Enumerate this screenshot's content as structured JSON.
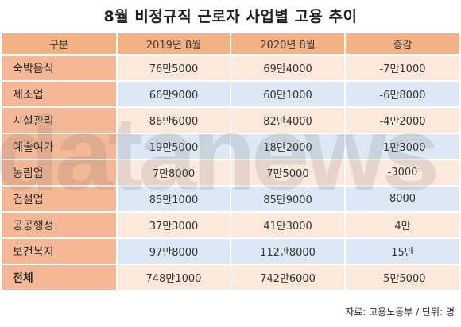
{
  "title": "8월 비정규직 근로자 사업별 고용 추이",
  "watermark": "datanews",
  "source": "자료: 고용노동부 / 단위: 명",
  "colors": {
    "header_bg": "#f4b184",
    "label_bg": "#f5b896",
    "row_peach": "#fde9dc",
    "row_blue": "#dce8f5"
  },
  "chart_data": {
    "type": "table",
    "title": "8월 비정규직 근로자 사업별 고용 추이",
    "columns": [
      "구분",
      "2019년 8월",
      "2020년 8월",
      "증감"
    ],
    "rows": [
      {
        "label": "숙박음식",
        "v2019": "76만5000",
        "v2020": "69만4000",
        "change": "-7만1000"
      },
      {
        "label": "제조업",
        "v2019": "66만9000",
        "v2020": "60만1000",
        "change": "-6만8000"
      },
      {
        "label": "시설관리",
        "v2019": "86만6000",
        "v2020": "82만4000",
        "change": "-4만2000"
      },
      {
        "label": "예술여가",
        "v2019": "19만5000",
        "v2020": "18만2000",
        "change": "-1만3000"
      },
      {
        "label": "농림업",
        "v2019": "7만8000",
        "v2020": "7만5000",
        "change": "-3000"
      },
      {
        "label": "건설업",
        "v2019": "85만1000",
        "v2020": "85만9000",
        "change": "8000"
      },
      {
        "label": "공공행정",
        "v2019": "37만3000",
        "v2020": "41만3000",
        "change": "4만"
      },
      {
        "label": "보건복지",
        "v2019": "97만8000",
        "v2020": "112만8000",
        "change": "15만"
      },
      {
        "label": "전체",
        "v2019": "748만1000",
        "v2020": "742만6000",
        "change": "-5만5000"
      }
    ]
  }
}
